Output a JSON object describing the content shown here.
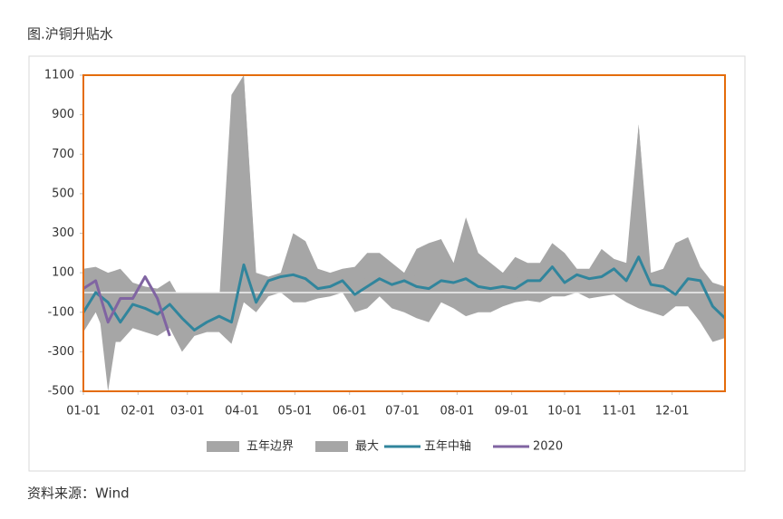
{
  "chart_data": {
    "type": "line",
    "title": "图.沪铜升贴水",
    "source": "资料来源：Wind",
    "x": [
      0,
      7,
      14,
      21,
      28,
      35,
      42,
      49,
      56,
      63,
      70,
      77,
      84,
      91,
      98,
      105,
      112,
      119,
      126,
      133,
      140,
      147,
      154,
      161,
      168,
      175,
      182,
      189,
      196,
      203,
      210,
      217,
      224,
      231,
      238,
      245,
      252,
      259,
      266,
      273,
      280,
      287,
      294,
      301,
      308,
      315,
      322,
      329,
      336,
      343,
      350,
      357,
      364
    ],
    "xlim": [
      0,
      364
    ],
    "xticks": [
      {
        "value": 0,
        "label": "01-01"
      },
      {
        "value": 31,
        "label": "02-01"
      },
      {
        "value": 59,
        "label": "03-01"
      },
      {
        "value": 90,
        "label": "04-01"
      },
      {
        "value": 120,
        "label": "05-01"
      },
      {
        "value": 151,
        "label": "06-01"
      },
      {
        "value": 181,
        "label": "07-01"
      },
      {
        "value": 212,
        "label": "08-01"
      },
      {
        "value": 243,
        "label": "09-01"
      },
      {
        "value": 273,
        "label": "10-01"
      },
      {
        "value": 304,
        "label": "11-01"
      },
      {
        "value": 334,
        "label": "12-01"
      }
    ],
    "ylim": [
      -500,
      1100
    ],
    "yticks": [
      -500,
      -300,
      -100,
      100,
      300,
      500,
      700,
      900,
      1100
    ],
    "series": [
      {
        "name": "五年边界",
        "type": "band",
        "color": "#a6a6a6",
        "values": [
          120,
          130,
          100,
          120,
          50,
          30,
          20,
          60,
          -50,
          -150,
          -100,
          -50,
          1000,
          1100,
          100,
          80,
          100,
          300,
          260,
          120,
          100,
          120,
          130,
          200,
          200,
          150,
          100,
          220,
          250,
          270,
          150,
          380,
          200,
          150,
          100,
          180,
          150,
          150,
          250,
          200,
          120,
          120,
          220,
          170,
          150,
          850,
          100,
          120,
          250,
          280,
          130,
          50,
          30
        ],
        "lower": [
          -200,
          -100,
          -250,
          -250,
          -180,
          -200,
          -220,
          -180,
          -300,
          -220,
          -200,
          -200,
          -260,
          -50,
          -100,
          -20,
          0,
          -50,
          -50,
          -30,
          -20,
          0,
          -100,
          -80,
          -20,
          -80,
          -100,
          -130,
          -150,
          -50,
          -80,
          -120,
          -100,
          -100,
          -70,
          -50,
          -40,
          -50,
          -20,
          -20,
          0,
          -30,
          -20,
          -10,
          -50,
          -80,
          -100,
          -120,
          -70,
          -70,
          -150,
          -250,
          -230
        ]
      },
      {
        "name": "最大",
        "type": "area",
        "color": "#a6a6a6",
        "values": [
          -50,
          50,
          -500,
          -100,
          30,
          -20,
          -30,
          20,
          -100,
          -200,
          -150,
          -100,
          100,
          1100,
          80,
          60,
          70,
          100,
          80,
          30,
          40,
          60,
          30,
          80,
          80,
          60,
          50,
          90,
          100,
          100,
          60,
          150,
          80,
          50,
          40,
          80,
          60,
          60,
          120,
          80,
          50,
          60,
          100,
          80,
          60,
          850,
          60,
          60,
          100,
          120,
          80,
          -80,
          -150
        ]
      },
      {
        "name": "五年中轴",
        "type": "line",
        "color": "#31859c",
        "values": [
          -100,
          0,
          -50,
          -150,
          -60,
          -80,
          -110,
          -60,
          -130,
          -190,
          -150,
          -120,
          -150,
          140,
          -50,
          60,
          80,
          90,
          70,
          20,
          30,
          60,
          -10,
          30,
          70,
          40,
          60,
          30,
          20,
          60,
          50,
          70,
          30,
          20,
          30,
          20,
          60,
          60,
          130,
          50,
          90,
          70,
          80,
          120,
          60,
          180,
          40,
          30,
          -10,
          70,
          60,
          -70,
          -130
        ]
      },
      {
        "name": "2020",
        "type": "line",
        "color": "#8064a2",
        "values": [
          20,
          60,
          -150,
          -30,
          -30,
          80,
          -30,
          -220,
          null,
          null,
          null,
          null,
          null,
          null,
          null,
          null,
          null,
          null,
          null,
          null,
          null,
          null,
          null,
          null,
          null,
          null,
          null,
          null,
          null,
          null,
          null,
          null,
          null,
          null,
          null,
          null,
          null,
          null,
          null,
          null,
          null,
          null,
          null,
          null,
          null,
          null,
          null,
          null,
          null,
          null,
          null,
          null,
          null
        ]
      }
    ]
  }
}
